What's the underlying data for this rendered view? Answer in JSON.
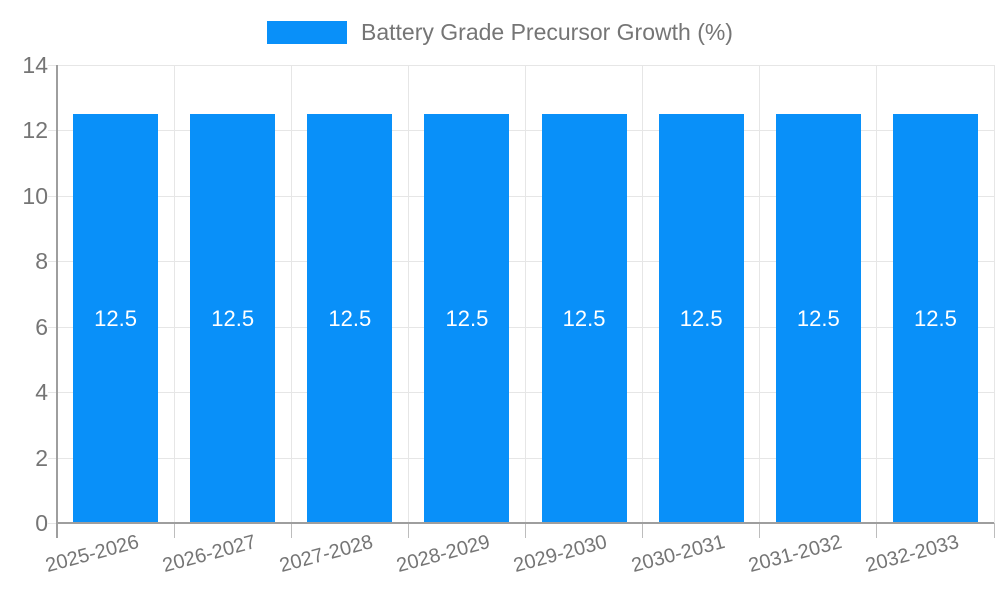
{
  "chart_data": {
    "type": "bar",
    "title": "Battery Grade Precursor Growth (%)",
    "categories": [
      "2025-2026",
      "2026-2027",
      "2027-2028",
      "2028-2029",
      "2029-2030",
      "2030-2031",
      "2031-2032",
      "2032-2033"
    ],
    "values": [
      12.5,
      12.5,
      12.5,
      12.5,
      12.5,
      12.5,
      12.5,
      12.5
    ],
    "bar_labels": [
      "12.5",
      "12.5",
      "12.5",
      "12.5",
      "12.5",
      "12.5",
      "12.5",
      "12.5"
    ],
    "ylim": [
      0,
      14
    ],
    "yticks": [
      0,
      2,
      4,
      6,
      8,
      10,
      12,
      14
    ],
    "xlabel": "",
    "ylabel": "",
    "grid": true,
    "legend_position": "top-center",
    "colors": {
      "bar": "#0990f9",
      "grid": "#e6e6e6",
      "axis": "#9e9e9e",
      "tick": "#bdbdbd",
      "text": "#757575",
      "bar_label": "#ffffff",
      "background": "#ffffff"
    }
  }
}
